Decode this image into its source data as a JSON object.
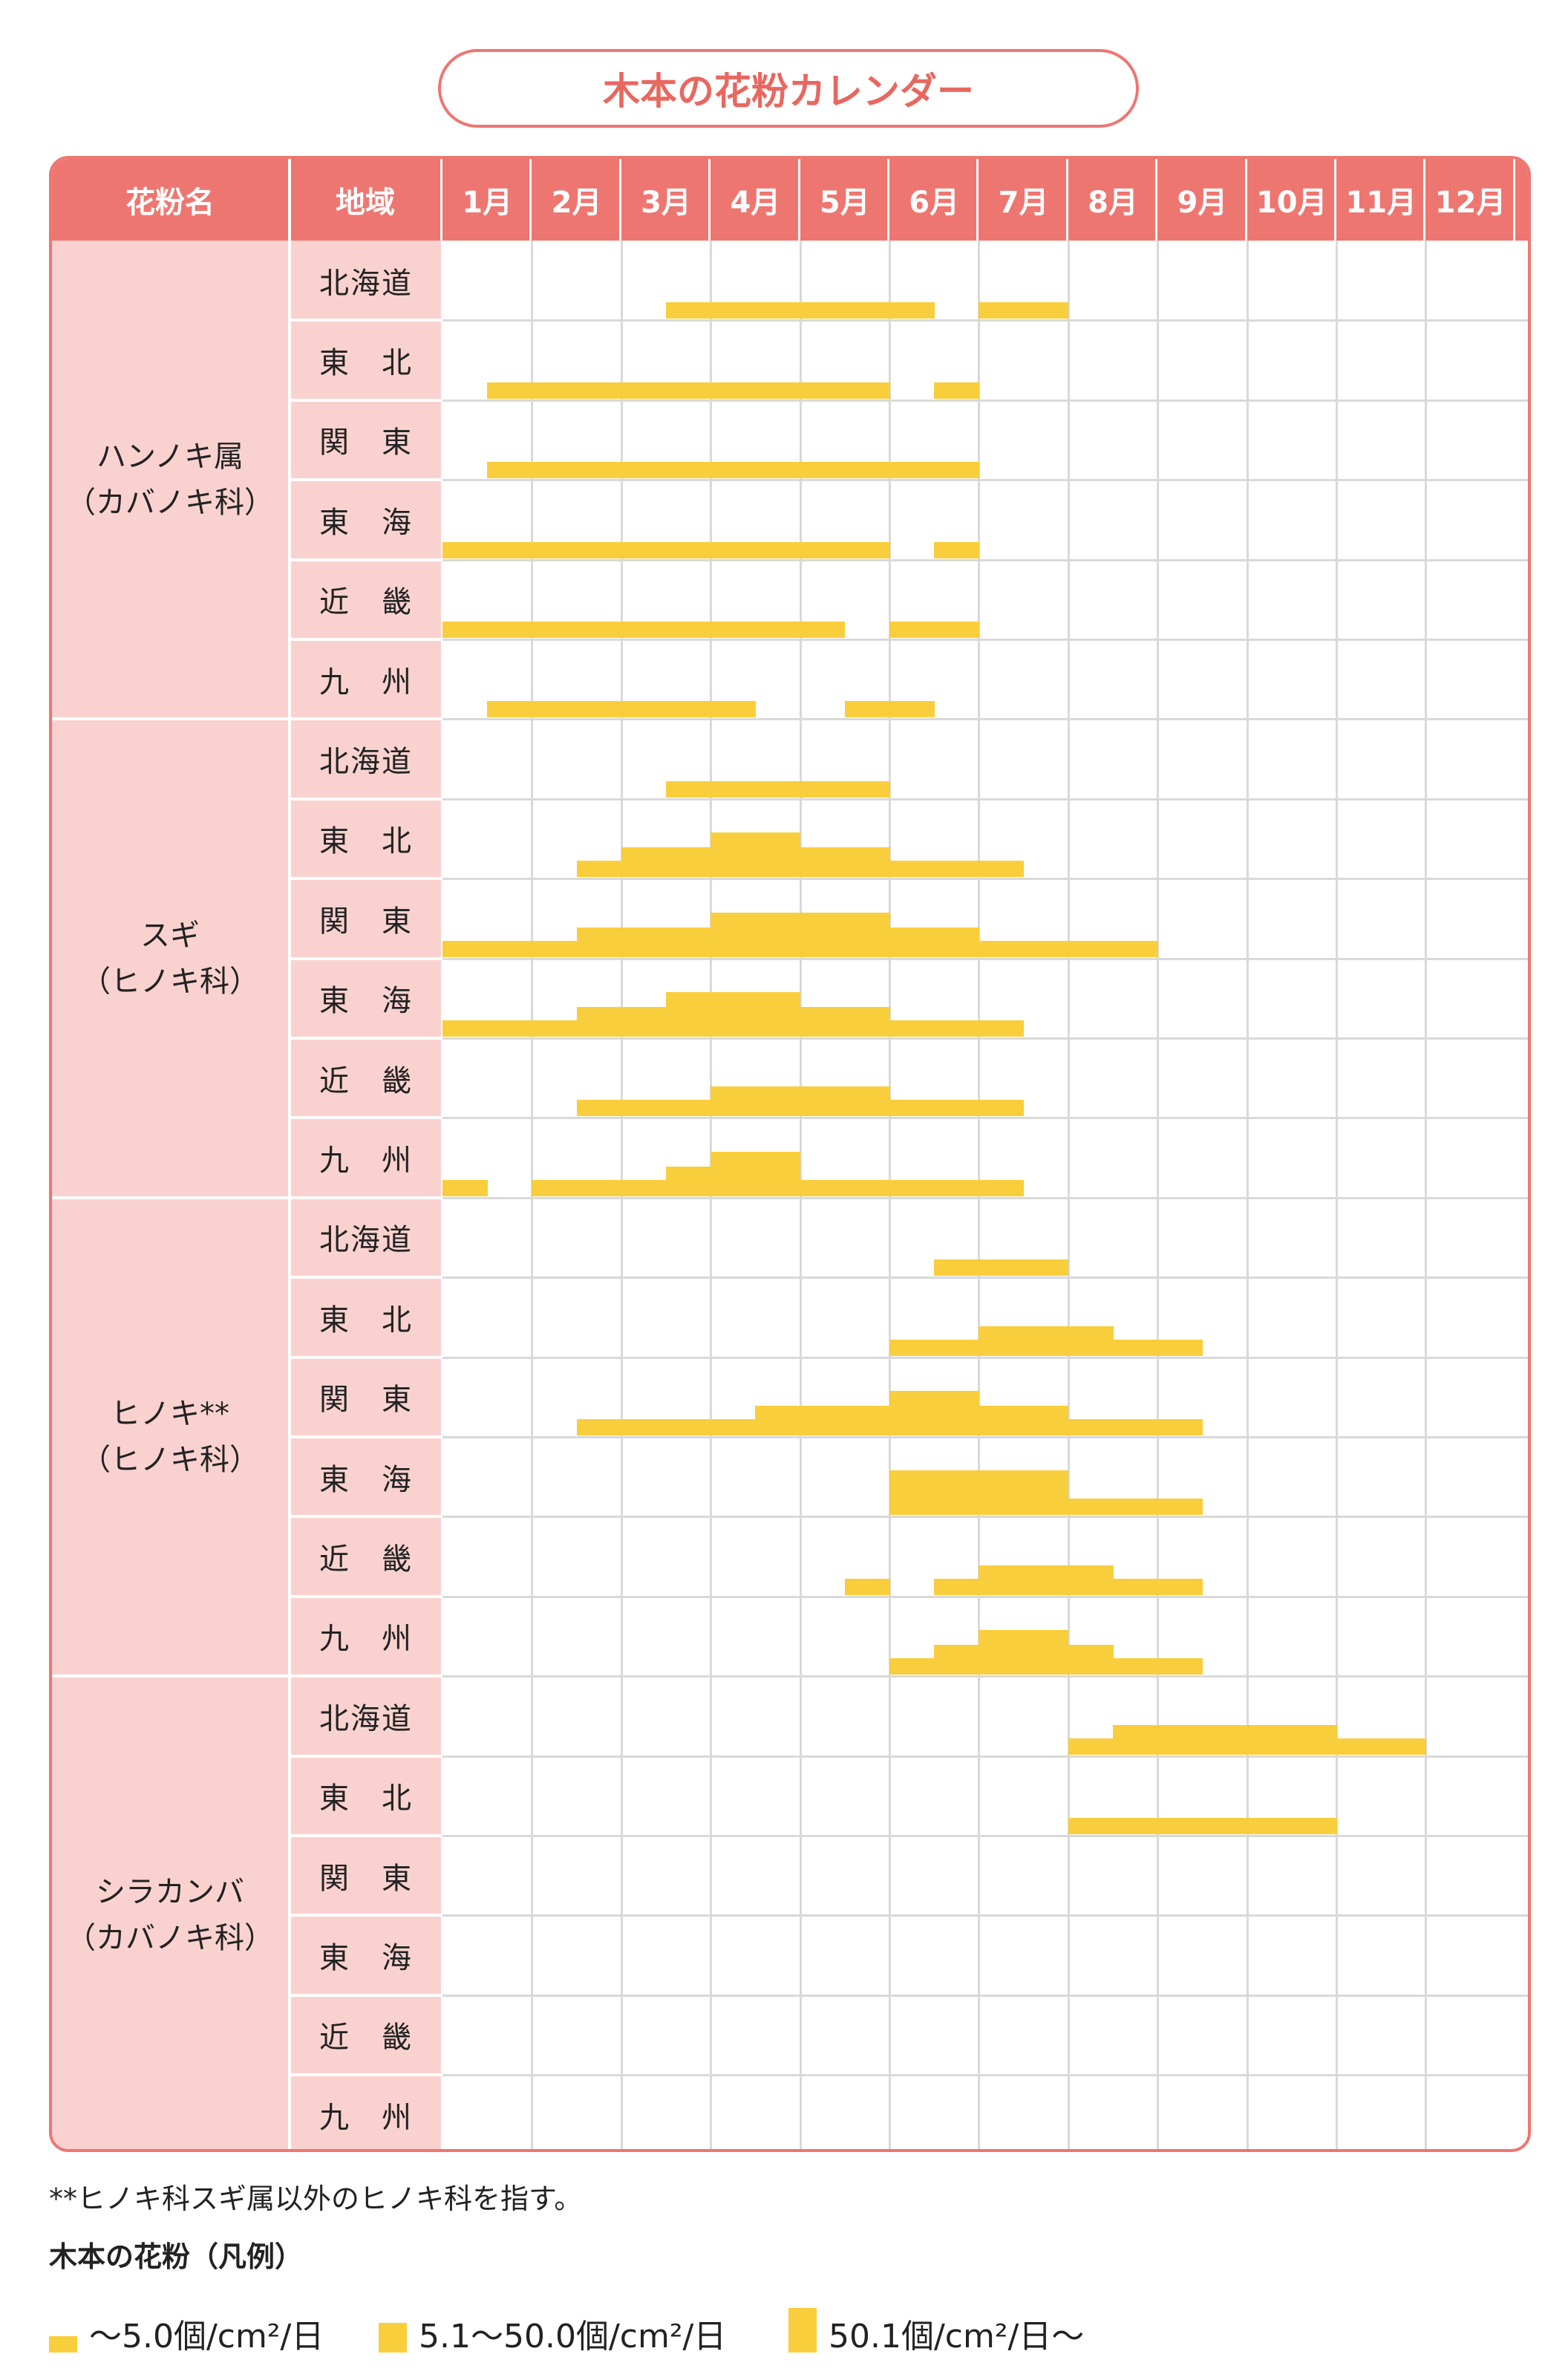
{
  "title": "木本の花粉カレンダー",
  "chart_data": {
    "type": "heatmap",
    "title": "木本の花粉カレンダー",
    "header_pollen": "花粉名",
    "header_region": "地域",
    "months": [
      "1月",
      "2月",
      "3月",
      "4月",
      "5月",
      "6月",
      "7月",
      "8月",
      "9月",
      "10月",
      "11月",
      "12月"
    ],
    "value_unit": "half-month periods; level 1 = ~5.0個/cm²/日, 2 = 5.1~50.0個/cm²/日, 3 = 50.1個/cm²/日~",
    "groups": [
      {
        "name_lines": [
          "ハンノキ属",
          "（カバノキ科）"
        ],
        "rows": [
          {
            "region": "北海道",
            "levels": [
              0,
              0,
              0,
              0,
              0,
              1,
              1,
              1,
              1,
              1,
              1,
              0,
              1,
              1,
              0,
              0,
              0,
              0,
              0,
              0,
              0,
              0,
              0,
              0
            ]
          },
          {
            "region": "東　北",
            "levels": [
              0,
              1,
              1,
              1,
              1,
              1,
              1,
              1,
              1,
              1,
              0,
              1,
              0,
              0,
              0,
              0,
              0,
              0,
              0,
              0,
              0,
              0,
              0,
              0
            ]
          },
          {
            "region": "関　東",
            "levels": [
              0,
              1,
              1,
              1,
              1,
              1,
              1,
              1,
              1,
              1,
              1,
              1,
              0,
              0,
              0,
              0,
              0,
              0,
              0,
              0,
              0,
              0,
              0,
              0
            ]
          },
          {
            "region": "東　海",
            "levels": [
              1,
              1,
              1,
              1,
              1,
              1,
              1,
              1,
              1,
              1,
              0,
              1,
              0,
              0,
              0,
              0,
              0,
              0,
              0,
              0,
              0,
              0,
              0,
              0
            ]
          },
          {
            "region": "近　畿",
            "levels": [
              1,
              1,
              1,
              1,
              1,
              1,
              1,
              1,
              1,
              0,
              1,
              1,
              0,
              0,
              0,
              0,
              0,
              0,
              0,
              0,
              0,
              0,
              0,
              0
            ]
          },
          {
            "region": "九　州",
            "levels": [
              0,
              1,
              1,
              1,
              1,
              1,
              1,
              0,
              0,
              1,
              1,
              0,
              0,
              0,
              0,
              0,
              0,
              0,
              0,
              0,
              0,
              0,
              0,
              0
            ]
          }
        ]
      },
      {
        "name_lines": [
          "スギ",
          "（ヒノキ科）"
        ],
        "rows": [
          {
            "region": "北海道",
            "levels": [
              0,
              0,
              0,
              0,
              0,
              1,
              1,
              1,
              1,
              1,
              0,
              0,
              0,
              0,
              0,
              0,
              0,
              0,
              0,
              0,
              0,
              0,
              0,
              0
            ]
          },
          {
            "region": "東　北",
            "levels": [
              0,
              0,
              0,
              1,
              2,
              2,
              3,
              3,
              2,
              2,
              1,
              1,
              1,
              0,
              0,
              0,
              0,
              0,
              0,
              0,
              0,
              0,
              0,
              0
            ]
          },
          {
            "region": "関　東",
            "levels": [
              1,
              1,
              1,
              2,
              2,
              2,
              3,
              3,
              3,
              3,
              2,
              2,
              1,
              1,
              1,
              1,
              0,
              0,
              0,
              0,
              0,
              0,
              0,
              0
            ]
          },
          {
            "region": "東　海",
            "levels": [
              1,
              1,
              1,
              2,
              2,
              3,
              3,
              3,
              2,
              2,
              1,
              1,
              1,
              0,
              0,
              0,
              0,
              0,
              0,
              0,
              0,
              0,
              0,
              0
            ]
          },
          {
            "region": "近　畿",
            "levels": [
              0,
              0,
              0,
              1,
              1,
              1,
              2,
              2,
              2,
              2,
              1,
              1,
              1,
              0,
              0,
              0,
              0,
              0,
              0,
              0,
              0,
              0,
              0,
              0
            ]
          },
          {
            "region": "九　州",
            "levels": [
              1,
              0,
              1,
              1,
              1,
              2,
              3,
              3,
              1,
              1,
              1,
              1,
              1,
              0,
              0,
              0,
              0,
              0,
              0,
              0,
              0,
              0,
              0,
              0
            ]
          }
        ]
      },
      {
        "name_lines": [
          "ヒノキ**",
          "（ヒノキ科）"
        ],
        "rows": [
          {
            "region": "北海道",
            "levels": [
              0,
              0,
              0,
              0,
              0,
              0,
              0,
              0,
              0,
              0,
              0,
              1,
              1,
              1,
              0,
              0,
              0,
              0,
              0,
              0,
              0,
              0,
              0,
              0
            ]
          },
          {
            "region": "東　北",
            "levels": [
              0,
              0,
              0,
              0,
              0,
              0,
              0,
              0,
              0,
              0,
              1,
              1,
              2,
              2,
              2,
              1,
              1,
              0,
              0,
              0,
              0,
              0,
              0,
              0
            ]
          },
          {
            "region": "関　東",
            "levels": [
              0,
              0,
              0,
              1,
              1,
              1,
              1,
              2,
              2,
              2,
              3,
              3,
              2,
              2,
              1,
              1,
              1,
              0,
              0,
              0,
              0,
              0,
              0,
              0
            ]
          },
          {
            "region": "東　海",
            "levels": [
              0,
              0,
              0,
              0,
              0,
              0,
              0,
              0,
              0,
              0,
              3,
              3,
              3,
              3,
              1,
              1,
              1,
              0,
              0,
              0,
              0,
              0,
              0,
              0
            ]
          },
          {
            "region": "近　畿",
            "levels": [
              0,
              0,
              0,
              0,
              0,
              0,
              0,
              0,
              0,
              1,
              0,
              1,
              2,
              2,
              2,
              1,
              1,
              0,
              0,
              0,
              0,
              0,
              0,
              0
            ]
          },
          {
            "region": "九　州",
            "levels": [
              0,
              0,
              0,
              0,
              0,
              0,
              0,
              0,
              0,
              0,
              1,
              2,
              3,
              3,
              2,
              1,
              1,
              0,
              0,
              0,
              0,
              0,
              0,
              0
            ]
          }
        ]
      },
      {
        "name_lines": [
          "シラカンバ",
          "（カバノキ科）"
        ],
        "rows": [
          {
            "region": "北海道",
            "levels": [
              0,
              0,
              0,
              0,
              0,
              0,
              0,
              0,
              0,
              0,
              0,
              0,
              0,
              0,
              1,
              2,
              2,
              2,
              2,
              2,
              1,
              1,
              0,
              0
            ]
          },
          {
            "region": "東　北",
            "levels": [
              0,
              0,
              0,
              0,
              0,
              0,
              0,
              0,
              0,
              0,
              0,
              0,
              0,
              0,
              1,
              1,
              1,
              1,
              1,
              1,
              0,
              0,
              0,
              0
            ]
          },
          {
            "region": "関　東",
            "levels": [
              0,
              0,
              0,
              0,
              0,
              0,
              0,
              0,
              0,
              0,
              0,
              0,
              0,
              0,
              0,
              0,
              0,
              0,
              0,
              0,
              0,
              0,
              0,
              0
            ]
          },
          {
            "region": "東　海",
            "levels": [
              0,
              0,
              0,
              0,
              0,
              0,
              0,
              0,
              0,
              0,
              0,
              0,
              0,
              0,
              0,
              0,
              0,
              0,
              0,
              0,
              0,
              0,
              0,
              0
            ]
          },
          {
            "region": "近　畿",
            "levels": [
              0,
              0,
              0,
              0,
              0,
              0,
              0,
              0,
              0,
              0,
              0,
              0,
              0,
              0,
              0,
              0,
              0,
              0,
              0,
              0,
              0,
              0,
              0,
              0
            ]
          },
          {
            "region": "九　州",
            "levels": [
              0,
              0,
              0,
              0,
              0,
              0,
              0,
              0,
              0,
              0,
              0,
              0,
              0,
              0,
              0,
              0,
              0,
              0,
              0,
              0,
              0,
              0,
              0,
              0
            ]
          }
        ]
      }
    ],
    "legend": [
      {
        "level": 1,
        "label": "～5.0個/cm²/日"
      },
      {
        "level": 2,
        "label": "5.1～50.0個/cm²/日"
      },
      {
        "level": 3,
        "label": "50.1個/cm²/日～"
      }
    ]
  },
  "footnote": "**ヒノキ科スギ属以外のヒノキ科を指す。",
  "legend_title": "木本の花粉（凡例）",
  "colors": {
    "accent": "#ee7671",
    "label_bg": "#f9d2d0",
    "bar": "#f9ce3c"
  }
}
